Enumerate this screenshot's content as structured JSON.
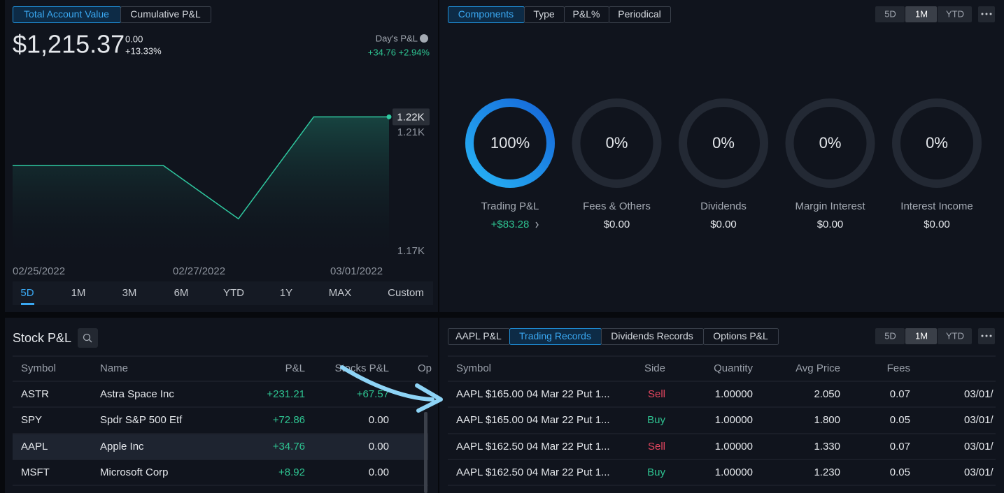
{
  "account": {
    "tabs": [
      "Total Account Value",
      "Cumulative P&L"
    ],
    "value": "$1,215.37",
    "change": "0.00",
    "change_pct": "+13.33%",
    "days_pl_label": "Day's P&L",
    "days_pl": "+34.76 +2.94%",
    "chart": {
      "type": "area",
      "x": [
        0,
        2,
        3,
        4,
        5
      ],
      "values": [
        1199,
        1199,
        1181,
        1215.37,
        1215.37
      ],
      "xlim": [
        0,
        5
      ],
      "ylim": [
        1166.5,
        1221.8
      ],
      "yticks": [
        {
          "value": 1210,
          "label": "1.21K"
        },
        {
          "value": 1170,
          "label": "1.17K"
        }
      ],
      "last_label": "1.22K",
      "x_labels": [
        "02/25/2022",
        "02/27/2022",
        "03/01/2022"
      ]
    },
    "ranges": [
      "5D",
      "1M",
      "3M",
      "6M",
      "YTD",
      "1Y",
      "MAX",
      "Custom"
    ]
  },
  "components": {
    "tabs": [
      "Components",
      "Type",
      "P&L%",
      "Periodical"
    ],
    "periods": [
      "5D",
      "1M",
      "YTD"
    ],
    "items": [
      {
        "label": "Trading P&L",
        "percent": 100,
        "percent_label": "100%",
        "amount": "+$83.28"
      },
      {
        "label": "Fees & Others",
        "percent": 0,
        "percent_label": "0%",
        "amount": "$0.00"
      },
      {
        "label": "Dividends",
        "percent": 0,
        "percent_label": "0%",
        "amount": "$0.00"
      },
      {
        "label": "Margin Interest",
        "percent": 0,
        "percent_label": "0%",
        "amount": "$0.00"
      },
      {
        "label": "Interest Income",
        "percent": 0,
        "percent_label": "0%",
        "amount": "$0.00"
      }
    ]
  },
  "stock_pl": {
    "title": "Stock P&L",
    "headers": [
      "Symbol",
      "Name",
      "P&L",
      "Stocks P&L",
      "Op"
    ],
    "rows": [
      [
        "ASTR",
        "Astra Space Inc",
        "+231.21",
        "+67.57"
      ],
      [
        "SPY",
        "Spdr S&P 500 Etf",
        "+72.86",
        "0.00"
      ],
      [
        "AAPL",
        "Apple Inc",
        "+34.76",
        "0.00"
      ],
      [
        "MSFT",
        "Microsoft Corp",
        "+8.92",
        "0.00"
      ]
    ]
  },
  "trading": {
    "tabs": [
      "AAPL P&L",
      "Trading Records",
      "Dividends Records",
      "Options P&L"
    ],
    "periods": [
      "5D",
      "1M",
      "YTD"
    ],
    "headers": [
      "Symbol",
      "Side",
      "Quantity",
      "Avg Price",
      "Fees"
    ],
    "rows": [
      [
        "AAPL $165.00 04 Mar 22 Put 1...",
        "Sell",
        "1.00000",
        "2.050",
        "0.07",
        "03/01/"
      ],
      [
        "AAPL $165.00 04 Mar 22 Put 1...",
        "Buy",
        "1.00000",
        "1.800",
        "0.05",
        "03/01/"
      ],
      [
        "AAPL $162.50 04 Mar 22 Put 1...",
        "Sell",
        "1.00000",
        "1.330",
        "0.07",
        "03/01/"
      ],
      [
        "AAPL $162.50 04 Mar 22 Put 1...",
        "Buy",
        "1.00000",
        "1.230",
        "0.05",
        "03/01/"
      ]
    ]
  }
}
